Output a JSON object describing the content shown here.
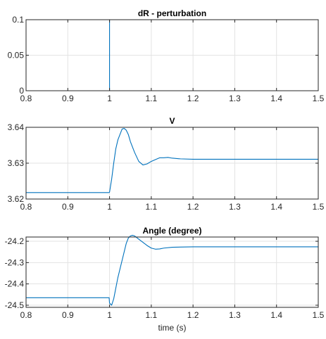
{
  "chart_data": [
    {
      "type": "line",
      "title": "dR - perturbation",
      "xlabel": "",
      "ylabel": "",
      "xlim": [
        0.8,
        1.5
      ],
      "ylim": [
        0,
        0.1
      ],
      "xticks": [
        0.8,
        0.9,
        1,
        1.1,
        1.2,
        1.3,
        1.4,
        1.5
      ],
      "xtick_labels": [
        "0.8",
        "0.9",
        "1",
        "1.1",
        "1.2",
        "1.3",
        "1.4",
        "1.5"
      ],
      "yticks": [
        0,
        0.05,
        0.1
      ],
      "ytick_labels": [
        "0",
        "0.05",
        "0.1"
      ],
      "grid": true,
      "color": "#0072BD",
      "series": [
        {
          "x": [
            0.8,
            1.0,
            1.0,
            1.5
          ],
          "values": [
            0,
            0,
            0.1,
            0.1
          ]
        }
      ]
    },
    {
      "type": "line",
      "title": "V",
      "xlabel": "",
      "ylabel": "",
      "xlim": [
        0.8,
        1.5
      ],
      "ylim": [
        3.62,
        3.64
      ],
      "xticks": [
        0.8,
        0.9,
        1,
        1.1,
        1.2,
        1.3,
        1.4,
        1.5
      ],
      "xtick_labels": [
        "0.8",
        "0.9",
        "1",
        "1.1",
        "1.2",
        "1.3",
        "1.4",
        "1.5"
      ],
      "yticks": [
        3.62,
        3.63,
        3.64
      ],
      "ytick_labels": [
        "3.62",
        "3.63",
        "3.64"
      ],
      "grid": true,
      "color": "#0072BD",
      "series": [
        {
          "x": [
            0.8,
            0.9,
            0.999,
            1.0,
            1.005,
            1.01,
            1.015,
            1.02,
            1.025,
            1.03,
            1.035,
            1.04,
            1.045,
            1.05,
            1.06,
            1.07,
            1.08,
            1.09,
            1.1,
            1.11,
            1.12,
            1.13,
            1.14,
            1.15,
            1.17,
            1.2,
            1.25,
            1.3,
            1.4,
            1.5
          ],
          "values": [
            3.6218,
            3.6218,
            3.6218,
            3.6219,
            3.6255,
            3.63,
            3.634,
            3.6365,
            3.638,
            3.6395,
            3.6397,
            3.6392,
            3.638,
            3.636,
            3.633,
            3.6305,
            3.6295,
            3.6298,
            3.6305,
            3.631,
            3.6315,
            3.6315,
            3.6316,
            3.6314,
            3.6312,
            3.6311,
            3.6311,
            3.6311,
            3.6311,
            3.6311
          ]
        }
      ]
    },
    {
      "type": "line",
      "title": "Angle (degree)",
      "xlabel": "time (s)",
      "ylabel": "",
      "xlim": [
        0.8,
        1.5
      ],
      "ylim": [
        -24.51,
        -24.18
      ],
      "xticks": [
        0.8,
        0.9,
        1,
        1.1,
        1.2,
        1.3,
        1.4,
        1.5
      ],
      "xtick_labels": [
        "0.8",
        "0.9",
        "1",
        "1.1",
        "1.2",
        "1.3",
        "1.4",
        "1.5"
      ],
      "yticks": [
        -24.5,
        -24.4,
        -24.3,
        -24.2
      ],
      "ytick_labels": [
        "-24.5",
        "-24.4",
        "-24.3",
        "-24.2"
      ],
      "grid": true,
      "color": "#0072BD",
      "series": [
        {
          "x": [
            0.8,
            0.9,
            0.999,
            1.0,
            1.005,
            1.01,
            1.015,
            1.02,
            1.025,
            1.03,
            1.035,
            1.04,
            1.045,
            1.05,
            1.055,
            1.06,
            1.07,
            1.08,
            1.09,
            1.1,
            1.11,
            1.12,
            1.13,
            1.15,
            1.2,
            1.3,
            1.4,
            1.5
          ],
          "values": [
            -24.465,
            -24.465,
            -24.465,
            -24.49,
            -24.5,
            -24.47,
            -24.42,
            -24.37,
            -24.33,
            -24.29,
            -24.25,
            -24.21,
            -24.185,
            -24.175,
            -24.172,
            -24.175,
            -24.19,
            -24.205,
            -24.22,
            -24.232,
            -24.237,
            -24.236,
            -24.232,
            -24.228,
            -24.226,
            -24.226,
            -24.226,
            -24.226
          ]
        }
      ]
    }
  ]
}
